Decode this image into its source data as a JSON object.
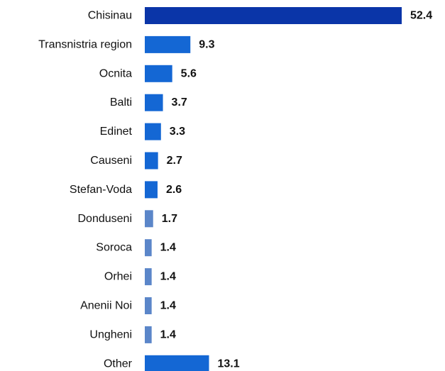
{
  "chart_data": {
    "type": "bar",
    "orientation": "horizontal",
    "title": "",
    "xlabel": "",
    "ylabel": "",
    "grid": false,
    "legend": "none",
    "xlim": [
      0,
      52.4
    ],
    "categories": [
      "Chisinau",
      "Transnistria region",
      "Ocnita",
      "Balti",
      "Edinet",
      "Causeni",
      "Stefan-Voda",
      "Donduseni",
      "Soroca",
      "Orhei",
      "Anenii Noi",
      "Ungheni",
      "Other"
    ],
    "values": [
      52.4,
      9.3,
      5.6,
      3.7,
      3.3,
      2.7,
      2.6,
      1.7,
      1.4,
      1.4,
      1.4,
      1.4,
      13.1
    ],
    "value_labels": [
      "52.4",
      "9.3",
      "5.6",
      "3.7",
      "3.3",
      "2.7",
      "2.6",
      "1.7",
      "1.4",
      "1.4",
      "1.4",
      "1.4",
      "13.1"
    ],
    "bar_colors": [
      "#0a35a8",
      "#1467d4",
      "#1467d4",
      "#1467d4",
      "#1467d4",
      "#1467d4",
      "#1467d4",
      "#5b86c9",
      "#5b86c9",
      "#5b86c9",
      "#5b86c9",
      "#5b86c9",
      "#1467d4"
    ]
  }
}
